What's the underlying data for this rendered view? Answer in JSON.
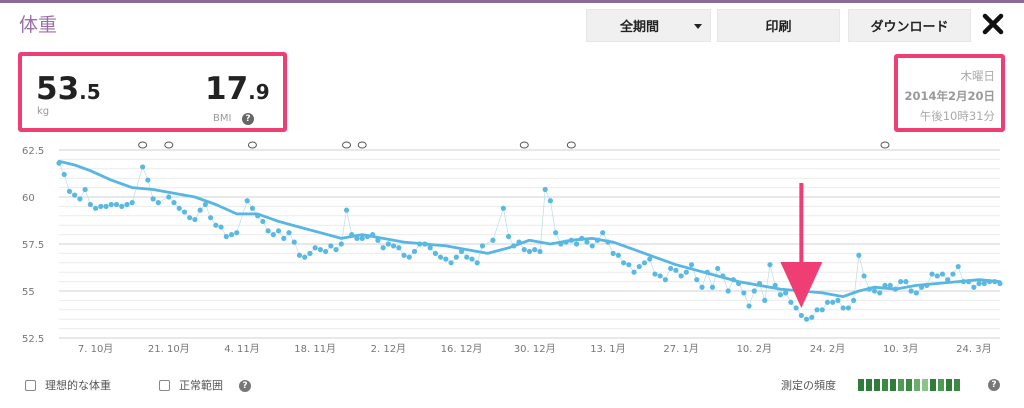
{
  "header": {
    "title": "体重",
    "period_label": "全期間",
    "print_label": "印刷",
    "download_label": "ダウンロード"
  },
  "stats": {
    "weight_int": "53",
    "weight_dec": ".5",
    "weight_unit": "kg",
    "bmi_int": "17",
    "bmi_dec": ".9",
    "bmi_label": "BMI"
  },
  "date": {
    "weekday": "木曜日",
    "date": "2014年2月20日",
    "time": "午後10時31分"
  },
  "footer": {
    "ideal_weight_label": "理想的な体重",
    "normal_range_label": "正常範囲",
    "frequency_label": "測定の頻度",
    "frequency_colors": [
      "#2f7d3a",
      "#2f7d3a",
      "#2f7d3a",
      "#3d8a45",
      "#2f7d3a",
      "#4f9a55",
      "#3d8a45",
      "#6aae6c",
      "#8cc38a",
      "#2f7d3a",
      "#4f9a55",
      "#2f7d3a",
      "#3d8a45"
    ]
  },
  "colors": {
    "accent": "#ee3e74",
    "line": "#57b6e2",
    "title": "#9b6fa9"
  },
  "chart_data": {
    "type": "line",
    "yticks": [
      52.5,
      55,
      57.5,
      60,
      62.5
    ],
    "ylim": [
      52.5,
      62.5
    ],
    "xlim": [
      0,
      180
    ],
    "xtick_labels": [
      "7. 10月",
      "21. 10月",
      "4. 11月",
      "18. 11月",
      "2. 12月",
      "16. 12月",
      "30. 12月",
      "13. 1月",
      "27. 1月",
      "10. 2月",
      "24. 2月",
      "10. 3月",
      "24. 3月"
    ],
    "xtick_positions": [
      7,
      21,
      35,
      49,
      63,
      77,
      91,
      105,
      119,
      133,
      147,
      161,
      175
    ],
    "note_markers_x": [
      16,
      21,
      37,
      55,
      58,
      89,
      98,
      158
    ],
    "highlight_x": 142,
    "trend": [
      [
        0,
        61.9
      ],
      [
        3,
        61.7
      ],
      [
        6,
        61.4
      ],
      [
        10,
        60.9
      ],
      [
        14,
        60.5
      ],
      [
        18,
        60.4
      ],
      [
        22,
        60.2
      ],
      [
        26,
        60.0
      ],
      [
        30,
        59.6
      ],
      [
        34,
        59.1
      ],
      [
        38,
        59.1
      ],
      [
        42,
        58.7
      ],
      [
        46,
        58.4
      ],
      [
        50,
        58.1
      ],
      [
        54,
        57.8
      ],
      [
        58,
        58.0
      ],
      [
        62,
        57.8
      ],
      [
        66,
        57.6
      ],
      [
        70,
        57.5
      ],
      [
        74,
        57.4
      ],
      [
        78,
        57.2
      ],
      [
        82,
        57.0
      ],
      [
        86,
        57.3
      ],
      [
        90,
        57.7
      ],
      [
        94,
        57.5
      ],
      [
        98,
        57.7
      ],
      [
        102,
        57.8
      ],
      [
        106,
        57.6
      ],
      [
        110,
        57.2
      ],
      [
        114,
        56.8
      ],
      [
        118,
        56.4
      ],
      [
        122,
        56.1
      ],
      [
        126,
        55.8
      ],
      [
        130,
        55.5
      ],
      [
        134,
        55.3
      ],
      [
        138,
        55.1
      ],
      [
        142,
        55.0
      ],
      [
        146,
        54.9
      ],
      [
        150,
        54.7
      ],
      [
        153,
        55.0
      ],
      [
        156,
        55.2
      ],
      [
        160,
        55.1
      ],
      [
        164,
        55.3
      ],
      [
        168,
        55.4
      ],
      [
        172,
        55.5
      ],
      [
        176,
        55.6
      ],
      [
        180,
        55.5
      ]
    ],
    "points": [
      [
        0,
        61.8
      ],
      [
        1,
        61.2
      ],
      [
        2,
        60.3
      ],
      [
        3,
        60.1
      ],
      [
        4,
        59.9
      ],
      [
        5,
        60.4
      ],
      [
        6,
        59.6
      ],
      [
        7,
        59.4
      ],
      [
        8,
        59.5
      ],
      [
        9,
        59.5
      ],
      [
        10,
        59.6
      ],
      [
        11,
        59.6
      ],
      [
        12,
        59.5
      ],
      [
        13,
        59.6
      ],
      [
        14,
        59.7
      ],
      [
        16,
        61.6
      ],
      [
        17,
        60.9
      ],
      [
        18,
        59.9
      ],
      [
        19,
        59.7
      ],
      [
        21,
        60.0
      ],
      [
        22,
        59.7
      ],
      [
        23,
        59.4
      ],
      [
        24,
        59.2
      ],
      [
        25,
        58.9
      ],
      [
        26,
        58.8
      ],
      [
        27,
        59.3
      ],
      [
        28,
        59.6
      ],
      [
        29,
        58.9
      ],
      [
        30,
        58.5
      ],
      [
        31,
        58.4
      ],
      [
        32,
        57.9
      ],
      [
        33,
        58.0
      ],
      [
        34,
        58.1
      ],
      [
        36,
        59.8
      ],
      [
        37,
        59.4
      ],
      [
        38,
        59.0
      ],
      [
        39,
        58.7
      ],
      [
        40,
        58.2
      ],
      [
        41,
        58.0
      ],
      [
        42,
        58.2
      ],
      [
        43,
        57.8
      ],
      [
        44,
        58.1
      ],
      [
        45,
        57.6
      ],
      [
        46,
        56.9
      ],
      [
        47,
        56.8
      ],
      [
        48,
        57.0
      ],
      [
        49,
        57.3
      ],
      [
        50,
        57.2
      ],
      [
        51,
        57.1
      ],
      [
        52,
        57.4
      ],
      [
        53,
        57.2
      ],
      [
        54,
        57.5
      ],
      [
        55,
        59.3
      ],
      [
        56,
        58.0
      ],
      [
        57,
        57.8
      ],
      [
        58,
        57.8
      ],
      [
        59,
        57.9
      ],
      [
        60,
        58.0
      ],
      [
        61,
        57.7
      ],
      [
        62,
        57.3
      ],
      [
        63,
        57.5
      ],
      [
        64,
        57.4
      ],
      [
        65,
        57.3
      ],
      [
        66,
        56.9
      ],
      [
        67,
        56.8
      ],
      [
        68,
        57.1
      ],
      [
        69,
        57.5
      ],
      [
        70,
        57.5
      ],
      [
        71,
        57.3
      ],
      [
        72,
        57.0
      ],
      [
        73,
        56.8
      ],
      [
        74,
        56.7
      ],
      [
        75,
        56.5
      ],
      [
        76,
        56.8
      ],
      [
        77,
        57.1
      ],
      [
        78,
        56.8
      ],
      [
        79,
        56.7
      ],
      [
        80,
        56.5
      ],
      [
        81,
        57.4
      ],
      [
        83,
        57.7
      ],
      [
        85,
        59.4
      ],
      [
        86,
        57.9
      ],
      [
        87,
        57.4
      ],
      [
        88,
        57.6
      ],
      [
        89,
        57.2
      ],
      [
        90,
        57.1
      ],
      [
        91,
        57.2
      ],
      [
        92,
        57.1
      ],
      [
        93,
        60.4
      ],
      [
        94,
        59.8
      ],
      [
        95,
        58.1
      ],
      [
        96,
        57.5
      ],
      [
        97,
        57.6
      ],
      [
        98,
        57.7
      ],
      [
        99,
        57.5
      ],
      [
        100,
        57.8
      ],
      [
        101,
        57.6
      ],
      [
        102,
        57.4
      ],
      [
        103,
        57.7
      ],
      [
        104,
        58.1
      ],
      [
        105,
        57.6
      ],
      [
        106,
        57.0
      ],
      [
        107,
        56.9
      ],
      [
        108,
        56.5
      ],
      [
        109,
        56.4
      ],
      [
        110,
        56.0
      ],
      [
        111,
        56.3
      ],
      [
        112,
        56.5
      ],
      [
        113,
        56.7
      ],
      [
        114,
        55.9
      ],
      [
        115,
        55.8
      ],
      [
        116,
        55.6
      ],
      [
        117,
        56.2
      ],
      [
        118,
        56.1
      ],
      [
        119,
        55.8
      ],
      [
        120,
        56.0
      ],
      [
        121,
        56.4
      ],
      [
        122,
        55.6
      ],
      [
        123,
        55.2
      ],
      [
        124,
        56.0
      ],
      [
        125,
        55.2
      ],
      [
        126,
        56.2
      ],
      [
        127,
        55.8
      ],
      [
        128,
        55.0
      ],
      [
        129,
        55.6
      ],
      [
        130,
        55.4
      ],
      [
        131,
        54.9
      ],
      [
        132,
        54.2
      ],
      [
        133,
        55.0
      ],
      [
        134,
        55.4
      ],
      [
        135,
        54.5
      ],
      [
        136,
        56.4
      ],
      [
        137,
        55.3
      ],
      [
        138,
        54.8
      ],
      [
        139,
        54.9
      ],
      [
        140,
        54.4
      ],
      [
        141,
        54.1
      ],
      [
        142,
        53.7
      ],
      [
        143,
        53.5
      ],
      [
        144,
        53.6
      ],
      [
        145,
        54.0
      ],
      [
        146,
        54.0
      ],
      [
        147,
        54.4
      ],
      [
        148,
        54.4
      ],
      [
        149,
        54.5
      ],
      [
        150,
        54.1
      ],
      [
        151,
        54.1
      ],
      [
        152,
        54.5
      ],
      [
        153,
        56.9
      ],
      [
        154,
        55.8
      ],
      [
        155,
        55.1
      ],
      [
        156,
        55.0
      ],
      [
        157,
        54.9
      ],
      [
        158,
        55.3
      ],
      [
        159,
        55.3
      ],
      [
        160,
        55.1
      ],
      [
        161,
        55.5
      ],
      [
        162,
        55.5
      ],
      [
        163,
        55.0
      ],
      [
        164,
        54.9
      ],
      [
        165,
        55.2
      ],
      [
        166,
        55.3
      ],
      [
        167,
        55.9
      ],
      [
        168,
        55.8
      ],
      [
        169,
        55.9
      ],
      [
        170,
        55.6
      ],
      [
        171,
        55.9
      ],
      [
        172,
        56.3
      ],
      [
        173,
        55.5
      ],
      [
        174,
        55.5
      ],
      [
        175,
        55.2
      ],
      [
        176,
        55.4
      ],
      [
        177,
        55.4
      ],
      [
        178,
        55.5
      ],
      [
        179,
        55.5
      ],
      [
        180,
        55.4
      ]
    ]
  }
}
